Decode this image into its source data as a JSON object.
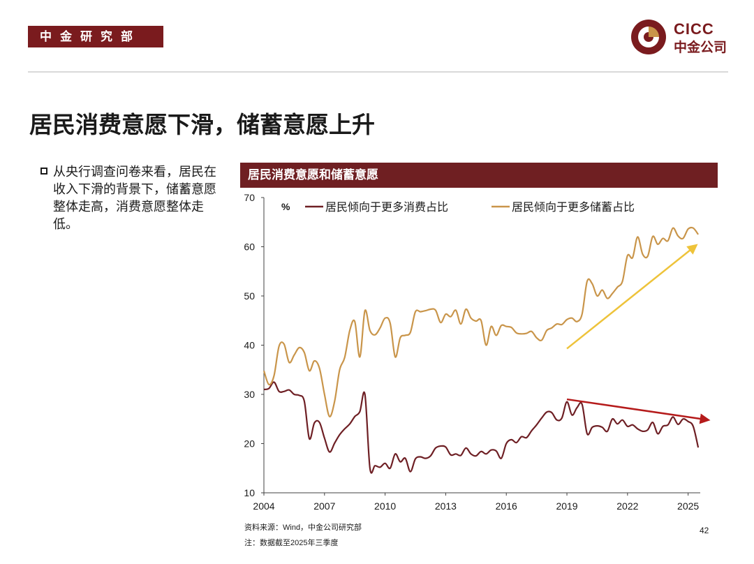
{
  "header": {
    "department": "中金研究部",
    "logo_en": "CICC",
    "logo_cn": "中金公司"
  },
  "page": {
    "title": "居民消费意愿下滑，储蓄意愿上升",
    "bullet": "从央行调查问卷来看，居民在收入下滑的背景下，储蓄意愿整体走高，消费意愿整体走低。",
    "page_number": "42"
  },
  "footer": {
    "source": "资料来源：Wind，中金公司研究部",
    "note": "注：数据截至2025年三季度"
  },
  "colors": {
    "brand": "#7a1b1e",
    "consumption": "#6e1f24",
    "savings": "#c9954a",
    "trend_up": "#eec33a",
    "trend_down": "#b51b1b"
  },
  "chart_data": {
    "type": "line",
    "title": "居民消费意愿和储蓄意愿",
    "unit_label": "%",
    "xlabel": "",
    "ylabel": "",
    "xlim": [
      2004,
      2025.6
    ],
    "ylim": [
      10,
      70
    ],
    "yticks": [
      10,
      20,
      30,
      40,
      50,
      60,
      70
    ],
    "xticks": [
      2004,
      2007,
      2010,
      2013,
      2016,
      2019,
      2022,
      2025
    ],
    "legend_position": "top",
    "series": [
      {
        "name": "居民倾向于更多消费占比",
        "color": "#6e1f24",
        "x": [
          2004.0,
          2004.25,
          2004.5,
          2004.75,
          2005.0,
          2005.25,
          2005.5,
          2005.75,
          2006.0,
          2006.25,
          2006.5,
          2006.75,
          2007.0,
          2007.25,
          2007.5,
          2007.75,
          2008.0,
          2008.25,
          2008.5,
          2008.75,
          2009.0,
          2009.25,
          2009.5,
          2009.75,
          2010.0,
          2010.25,
          2010.5,
          2010.75,
          2011.0,
          2011.25,
          2011.5,
          2011.75,
          2012.0,
          2012.25,
          2012.5,
          2012.75,
          2013.0,
          2013.25,
          2013.5,
          2013.75,
          2014.0,
          2014.25,
          2014.5,
          2014.75,
          2015.0,
          2015.25,
          2015.5,
          2015.75,
          2016.0,
          2016.25,
          2016.5,
          2016.75,
          2017.0,
          2017.25,
          2017.5,
          2017.75,
          2018.0,
          2018.25,
          2018.5,
          2018.75,
          2019.0,
          2019.25,
          2019.5,
          2019.75,
          2020.0,
          2020.25,
          2020.5,
          2020.75,
          2021.0,
          2021.25,
          2021.5,
          2021.75,
          2022.0,
          2022.25,
          2022.5,
          2022.75,
          2023.0,
          2023.25,
          2023.5,
          2023.75,
          2024.0,
          2024.25,
          2024.5,
          2024.75,
          2025.0,
          2025.25,
          2025.5
        ],
        "values": [
          31.0,
          31.2,
          32.5,
          30.6,
          30.6,
          30.9,
          30.0,
          29.8,
          28.6,
          21.0,
          24.2,
          24.3,
          21.1,
          18.3,
          20.1,
          21.8,
          23.0,
          24.0,
          25.5,
          26.5,
          30.0,
          15.0,
          15.5,
          15.2,
          16.0,
          15.0,
          17.9,
          16.3,
          17.0,
          14.3,
          16.9,
          17.3,
          17.0,
          17.5,
          19.1,
          19.5,
          19.3,
          17.7,
          17.9,
          17.6,
          19.1,
          17.9,
          17.5,
          18.4,
          17.9,
          18.7,
          18.5,
          17.0,
          20.0,
          20.8,
          20.2,
          21.4,
          21.2,
          22.6,
          23.8,
          25.2,
          26.4,
          26.3,
          24.8,
          25.2,
          28.5,
          25.8,
          27.3,
          28.0,
          22.0,
          23.3,
          23.6,
          23.3,
          22.5,
          25.0,
          24.0,
          24.8,
          23.5,
          23.8,
          23.0,
          22.5,
          22.8,
          24.3,
          22.0,
          23.5,
          23.8,
          25.4,
          23.9,
          25.0,
          24.5,
          23.5,
          19.2
        ]
      },
      {
        "name": "居民倾向于更多储蓄占比",
        "color": "#c9954a",
        "x": [
          2004.0,
          2004.25,
          2004.5,
          2004.75,
          2005.0,
          2005.25,
          2005.5,
          2005.75,
          2006.0,
          2006.25,
          2006.5,
          2006.75,
          2007.0,
          2007.25,
          2007.5,
          2007.75,
          2008.0,
          2008.25,
          2008.5,
          2008.75,
          2009.0,
          2009.25,
          2009.5,
          2009.75,
          2010.0,
          2010.25,
          2010.5,
          2010.75,
          2011.0,
          2011.25,
          2011.5,
          2011.75,
          2012.0,
          2012.25,
          2012.5,
          2012.75,
          2013.0,
          2013.25,
          2013.5,
          2013.75,
          2014.0,
          2014.25,
          2014.5,
          2014.75,
          2015.0,
          2015.25,
          2015.5,
          2015.75,
          2016.0,
          2016.25,
          2016.5,
          2016.75,
          2017.0,
          2017.25,
          2017.5,
          2017.75,
          2018.0,
          2018.25,
          2018.5,
          2018.75,
          2019.0,
          2019.25,
          2019.5,
          2019.75,
          2020.0,
          2020.25,
          2020.5,
          2020.75,
          2021.0,
          2021.25,
          2021.5,
          2021.75,
          2022.0,
          2022.25,
          2022.5,
          2022.75,
          2023.0,
          2023.25,
          2023.5,
          2023.75,
          2024.0,
          2024.25,
          2024.5,
          2024.75,
          2025.0,
          2025.25,
          2025.5
        ],
        "values": [
          34.8,
          32.0,
          33.8,
          39.8,
          40.2,
          36.5,
          38.0,
          39.5,
          38.5,
          34.8,
          36.8,
          35.3,
          30.0,
          25.5,
          28.6,
          35.0,
          37.5,
          43.0,
          44.8,
          37.6,
          47.0,
          43.0,
          42.1,
          43.5,
          45.5,
          44.5,
          37.6,
          41.5,
          42.0,
          42.6,
          46.8,
          46.8,
          47.0,
          47.3,
          47.1,
          44.6,
          46.3,
          45.8,
          47.1,
          44.3,
          47.3,
          45.5,
          44.9,
          45.0,
          40.0,
          43.8,
          42.0,
          44.0,
          43.8,
          43.6,
          42.5,
          42.3,
          42.4,
          42.8,
          41.5,
          41.0,
          43.0,
          43.5,
          44.3,
          44.2,
          45.2,
          45.5,
          44.8,
          46.3,
          53.0,
          52.5,
          50.0,
          51.2,
          49.5,
          50.5,
          51.8,
          53.0,
          58.2,
          57.8,
          62.0,
          58.5,
          58.1,
          62.1,
          60.5,
          61.7,
          61.2,
          63.8,
          62.2,
          61.7,
          63.6,
          63.8,
          62.5
        ]
      }
    ],
    "annotations": [
      {
        "type": "arrow",
        "from": [
          2019.0,
          39.3
        ],
        "to": [
          2025.4,
          60.3
        ],
        "color": "#eec33a",
        "meaning": "储蓄意愿上升"
      },
      {
        "type": "arrow",
        "from": [
          2019.0,
          29.0
        ],
        "to": [
          2026.0,
          24.8
        ],
        "color": "#b51b1b",
        "meaning": "消费意愿下降"
      }
    ]
  }
}
